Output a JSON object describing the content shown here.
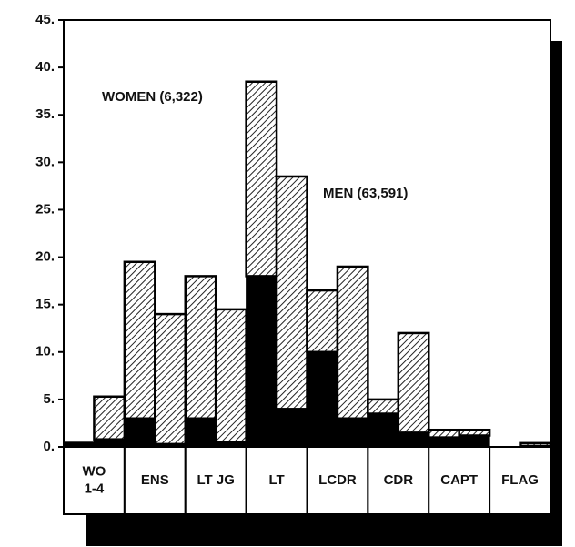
{
  "chart_data": {
    "type": "grouped-stacked-bar",
    "categories": [
      "WO\n1-4",
      "ENS",
      "LT JG",
      "LT",
      "LCDR",
      "CDR",
      "CAPT",
      "FLAG"
    ],
    "groups": [
      {
        "label": "WOMEN (6,322)",
        "solid": [
          0.5,
          3,
          3,
          18,
          10,
          3.5,
          1,
          0
        ],
        "hatched": [
          0,
          16.5,
          15,
          20.5,
          6.5,
          1.5,
          0.8,
          0
        ]
      },
      {
        "label": "MEN (63,591)",
        "solid": [
          0.8,
          0.3,
          0.5,
          4,
          3,
          1.5,
          1.2,
          0.1
        ],
        "hatched": [
          4.5,
          13.7,
          14,
          24.5,
          16,
          10.5,
          0.6,
          0.3
        ]
      }
    ],
    "ylim": [
      0,
      45
    ],
    "yticks": [
      {
        "value": 0,
        "label": "0."
      },
      {
        "value": 5,
        "label": "5."
      },
      {
        "value": 10,
        "label": "10."
      },
      {
        "value": 15,
        "label": "15."
      },
      {
        "value": 20,
        "label": "20."
      },
      {
        "value": 25,
        "label": "25."
      },
      {
        "value": 30,
        "label": "30."
      },
      {
        "value": 35,
        "label": "35."
      },
      {
        "value": 40,
        "label": "40."
      },
      {
        "value": 45,
        "label": "45."
      }
    ]
  }
}
